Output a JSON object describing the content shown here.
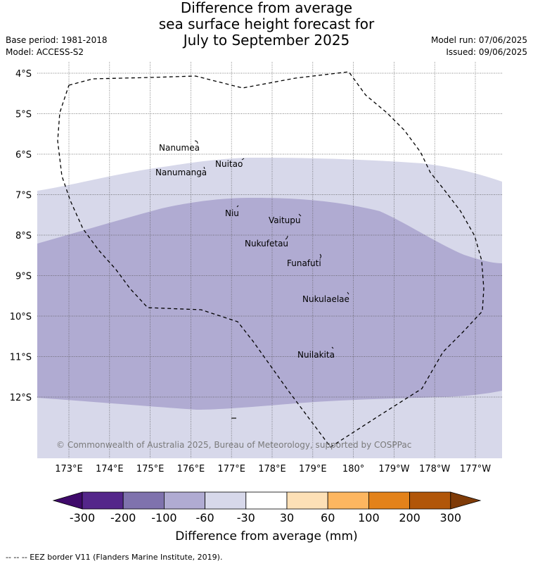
{
  "title": {
    "line1": "Difference from average",
    "line2": "sea surface height forecast for",
    "line3": "July to September 2025"
  },
  "meta_left": {
    "base_period": "Base period: 1981-2018",
    "model": "Model: ACCESS-S2"
  },
  "meta_right": {
    "model_run": "Model run: 07/06/2025",
    "issued": "Issued: 09/06/2025"
  },
  "map": {
    "lat_labels": [
      "4°S",
      "5°S",
      "6°S",
      "7°S",
      "8°S",
      "9°S",
      "10°S",
      "11°S",
      "12°S"
    ],
    "lon_labels": [
      "173°E",
      "174°E",
      "175°E",
      "176°E",
      "177°E",
      "178°E",
      "179°E",
      "180°",
      "179°W",
      "178°W",
      "177°W"
    ],
    "places": [
      {
        "name": "Nanumea"
      },
      {
        "name": "Nuitao"
      },
      {
        "name": "Nanumanga"
      },
      {
        "name": "Niu"
      },
      {
        "name": "Vaitupu"
      },
      {
        "name": "Nukufetau"
      },
      {
        "name": "Funafuti"
      },
      {
        "name": "Nukulaelae"
      },
      {
        "name": "Nuilakita"
      }
    ],
    "copyright": "© Commonwealth of Australia 2025, Bureau of Meteorology, supported by COSPPac",
    "colors": {
      "class_-60_-30": "#d7d8ea",
      "class_-100_-60": "#b0abd2",
      "land": "#ffffff"
    }
  },
  "colorbar": {
    "ticks": [
      "-300",
      "-200",
      "-100",
      "-60",
      "-30",
      "30",
      "60",
      "100",
      "200",
      "300"
    ],
    "colors": [
      "#3f0a6b",
      "#54268a",
      "#7f72ad",
      "#b0abd2",
      "#d7d8ea",
      "#ffffff",
      "#fde0b6",
      "#fdb660",
      "#e3821a",
      "#b15609",
      "#7f3b08"
    ],
    "label": "Difference from average (mm)"
  },
  "footer": "-- -- -- EEZ border V11 (Flanders Marine Institute, 2019)."
}
